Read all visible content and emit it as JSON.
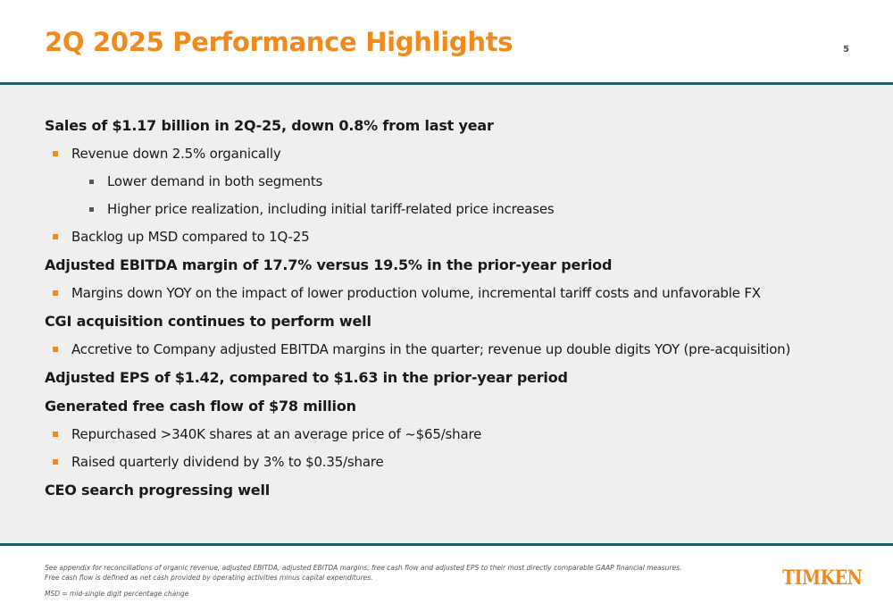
{
  "header": {
    "title": "2Q 2025 Performance Highlights",
    "page_number": "5"
  },
  "highlights": [
    {
      "level": 0,
      "text": "Sales of $1.17 billion in 2Q-25, down 0.8% from last year"
    },
    {
      "level": 1,
      "text": "Revenue down 2.5% organically"
    },
    {
      "level": 2,
      "text": "Lower demand in both segments"
    },
    {
      "level": 2,
      "text": "Higher price realization, including initial tariff-related price increases"
    },
    {
      "level": 1,
      "text": "Backlog up MSD compared to 1Q-25"
    },
    {
      "level": 0,
      "text": "Adjusted EBITDA margin of 17.7% versus 19.5% in the prior-year period"
    },
    {
      "level": 1,
      "text": "Margins down YOY on the impact of lower production volume, incremental tariff costs and unfavorable FX"
    },
    {
      "level": 0,
      "text": "CGI acquisition continues to perform well"
    },
    {
      "level": 1,
      "text": "Accretive to Company adjusted EBITDA margins in the quarter; revenue up double digits YOY (pre-acquisition)"
    },
    {
      "level": 0,
      "text": "Adjusted EPS of $1.42, compared to $1.63 in the prior-year period"
    },
    {
      "level": 0,
      "text": "Generated free cash flow of $78 million"
    },
    {
      "level": 1,
      "text": "Repurchased >340K shares at an average price of ~$65/share"
    },
    {
      "level": 1,
      "text": "Raised quarterly dividend by 3% to $0.35/share"
    },
    {
      "level": 0,
      "text": "CEO search progressing well"
    }
  ],
  "footnotes": {
    "line1": "See appendix for reconciliations of organic revenue, adjusted EBITDA, adjusted EBITDA margins, free cash flow and adjusted EPS to their most directly comparable GAAP financial measures.",
    "line2": "Free cash flow is defined as net cash provided by operating activities minus capital expenditures.",
    "line3": "MSD = mid-single digit percentage change"
  },
  "logo": {
    "text": "TIMKEN"
  },
  "colors": {
    "accent": "#f08a1c",
    "rule": "#1f5f6b",
    "panel": "#efefef"
  }
}
